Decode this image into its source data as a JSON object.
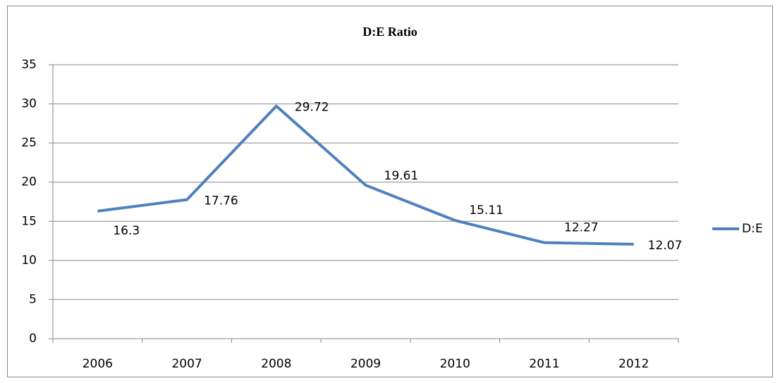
{
  "chart_data": {
    "type": "line",
    "title": "D:E Ratio",
    "categories": [
      "2006",
      "2007",
      "2008",
      "2009",
      "2010",
      "2011",
      "2012"
    ],
    "series": [
      {
        "name": "D:E",
        "color": "#4f81bd",
        "values": [
          16.3,
          17.76,
          29.72,
          19.61,
          15.11,
          12.27,
          12.07
        ]
      }
    ],
    "ylim": [
      0,
      35
    ],
    "yticks": [
      0,
      5,
      10,
      15,
      20,
      25,
      30,
      35
    ],
    "grid": true,
    "legend": "right"
  }
}
